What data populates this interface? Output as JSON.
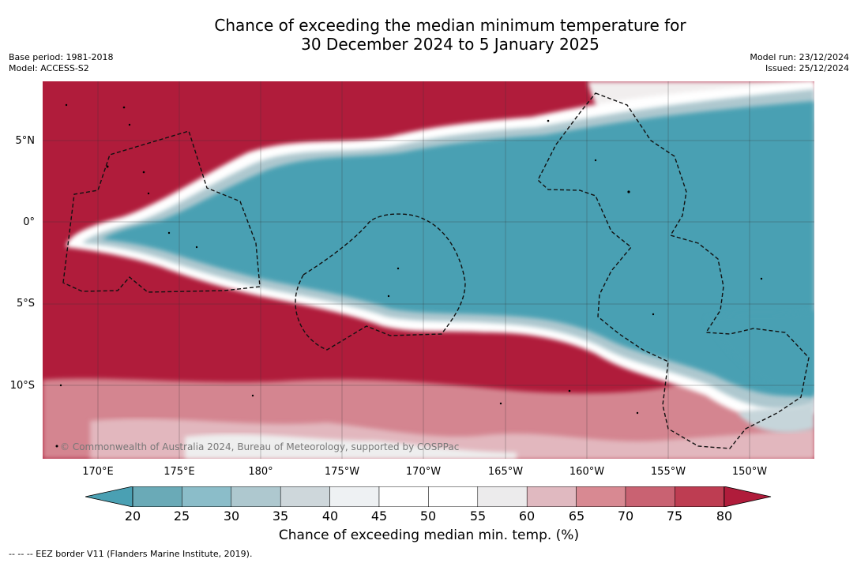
{
  "title_line1": "Chance of exceeding the median minimum temperature for",
  "title_line2": "30 December 2024 to 5 January 2025",
  "base_period": "Base period: 1981-2018",
  "model": "Model: ACCESS-S2",
  "model_run": "Model run: 23/12/2024",
  "issued": "Issued: 25/12/2024",
  "credit": "© Commonwealth of Australia 2024, Bureau of Meteorology, supported by COSPPac",
  "latitudes": [
    "5°N",
    "0°",
    "5°S",
    "10°S"
  ],
  "longitudes": [
    "170°E",
    "175°E",
    "180°",
    "175°W",
    "170°W",
    "165°W",
    "160°W",
    "155°W",
    "150°W"
  ],
  "colorbar": {
    "ticks": [
      "20",
      "25",
      "30",
      "35",
      "40",
      "45",
      "50",
      "55",
      "60",
      "65",
      "70",
      "75",
      "80"
    ],
    "colors": [
      "#4aa0b3",
      "#6aaab7",
      "#8bbdc9",
      "#aec8cf",
      "#ced7db",
      "#eef1f3",
      "#ffffff",
      "#ffffff",
      "#ecebec",
      "#e0b9c0",
      "#d88992",
      "#c96272",
      "#be3d52",
      "#b01c3b"
    ],
    "label": "Chance of exceeding median min. temp. (%)"
  },
  "footnote": "--  --  -- EEZ border V11 (Flanders Marine Institute, 2019)."
}
